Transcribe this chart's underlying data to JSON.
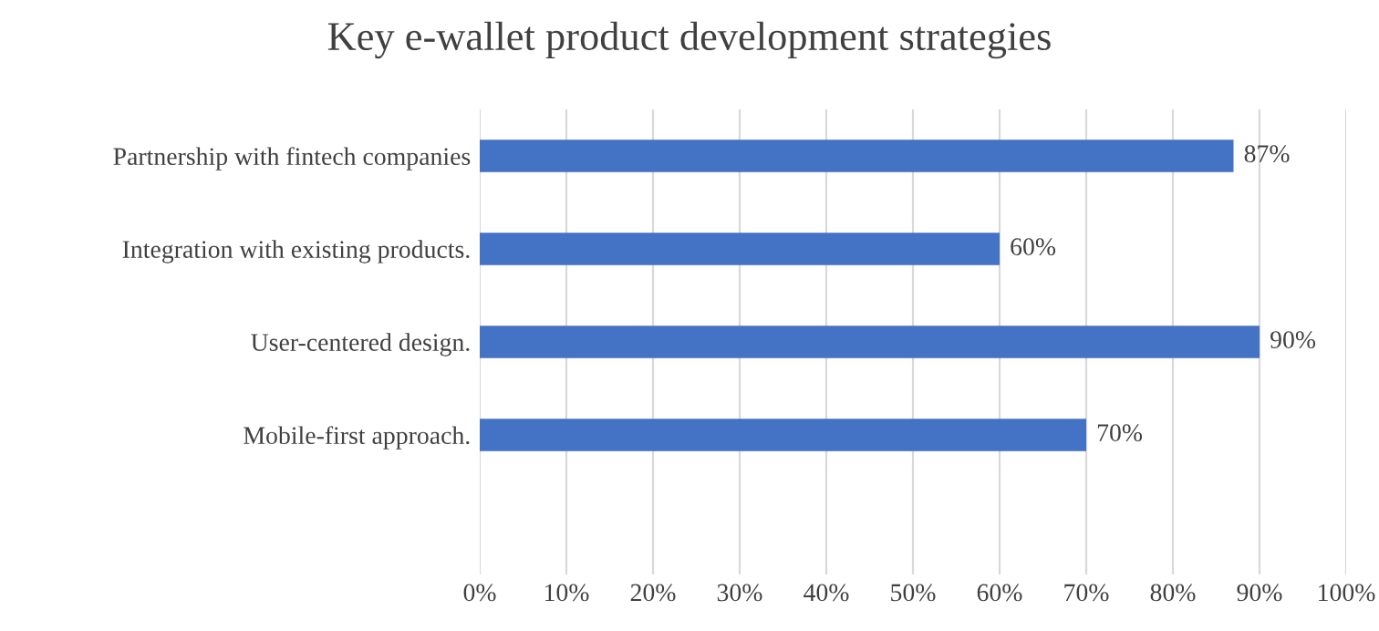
{
  "chart_data": {
    "type": "bar",
    "orientation": "horizontal",
    "title": "Key e-wallet product development strategies",
    "categories": [
      "Partnership with fintech companies",
      "Integration with existing products.",
      "User-centered design.",
      "Mobile-first approach.",
      null
    ],
    "series": [
      {
        "color": "#4472c4",
        "values": [
          87,
          60,
          90,
          70,
          null
        ],
        "value_labels": [
          "87%",
          "60%",
          "90%",
          "70%",
          null
        ]
      }
    ],
    "xlim": [
      0,
      100
    ],
    "xticks": [
      {
        "value": 0,
        "label": "0%"
      },
      {
        "value": 10,
        "label": "10%"
      },
      {
        "value": 20,
        "label": "20%"
      },
      {
        "value": 30,
        "label": "30%"
      },
      {
        "value": 40,
        "label": "40%"
      },
      {
        "value": 50,
        "label": "50%"
      },
      {
        "value": 60,
        "label": "60%"
      },
      {
        "value": 70,
        "label": "70%"
      },
      {
        "value": 80,
        "label": "80%"
      },
      {
        "value": 90,
        "label": "90%"
      },
      {
        "value": 100,
        "label": "100%"
      }
    ],
    "grid": "x",
    "legend": false
  }
}
